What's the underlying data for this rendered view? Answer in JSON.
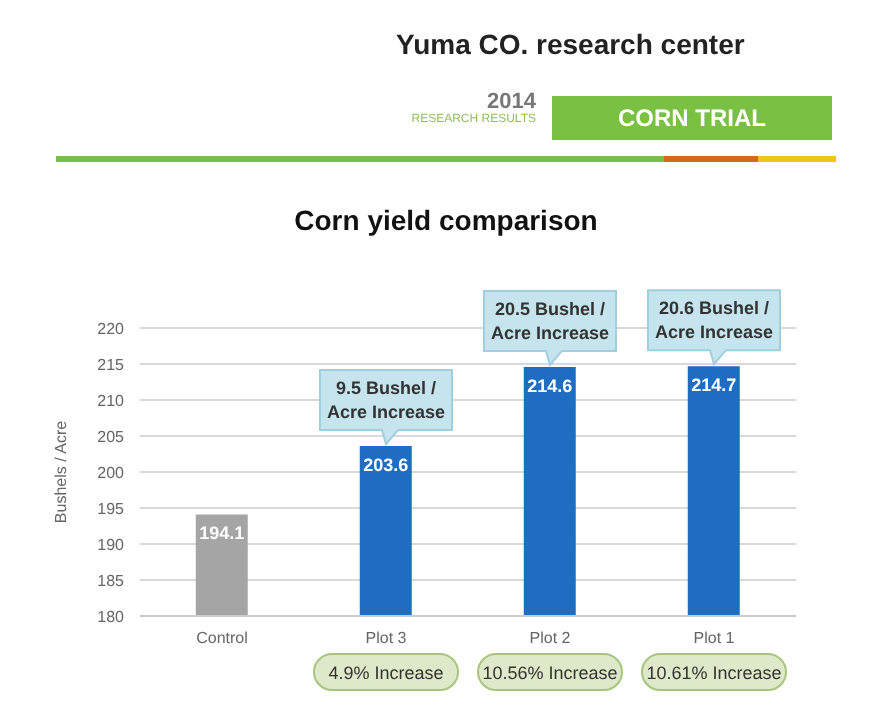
{
  "chart_data": {
    "type": "bar",
    "title": "Corn yield comparison",
    "subtitle": "Yuma CO. research center",
    "ylabel": "Bushels / Acre",
    "categories": [
      "Control",
      "Plot 3",
      "Plot 2",
      "Plot 1"
    ],
    "values": [
      194.1,
      203.6,
      214.6,
      214.7
    ],
    "colors": [
      "#a5a5a5",
      "#1f6dc2",
      "#1f6dc2",
      "#1f6dc2"
    ],
    "ylim": [
      180,
      220
    ],
    "yticks": [
      180,
      185,
      190,
      195,
      200,
      205,
      210,
      215,
      220
    ],
    "grid": "y",
    "data_labels": true,
    "legend": false,
    "annotations": [
      "2014",
      "RESEARCH RESULTS",
      "CORN TRIAL",
      {
        "text": "9.5 Bushel / Acre Increase",
        "x": "Plot 3",
        "y": 203.6
      },
      {
        "text": "20.5 Bushel / Acre Increase",
        "x": "Plot 2",
        "y": 214.6
      },
      {
        "text": "20.6 Bushel / Acre Increase",
        "x": "Plot 1",
        "y": 214.7
      },
      "4.9% Increase",
      "10.56% Increase",
      "10.61% Increase"
    ]
  }
}
